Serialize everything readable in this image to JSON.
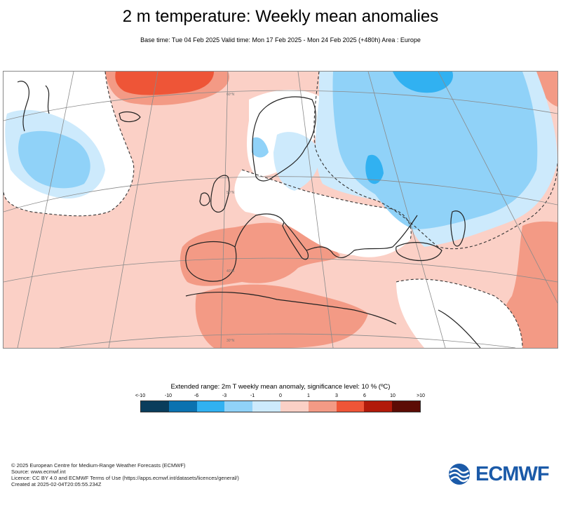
{
  "header": {
    "title": "2 m temperature: Weekly mean anomalies",
    "subtitle": "Base time: Tue 04 Feb 2025 Valid time: Mon 17 Feb 2025 - Mon 24 Feb 2025 (+480h) Area : Europe"
  },
  "map": {
    "graticule_labels": [
      "60°N",
      "50°N",
      "40°N",
      "30°N"
    ]
  },
  "legend": {
    "title": "Extended range: 2m T weekly mean anomaly, significance level: 10 % (ºC)",
    "ticks": [
      "<-10",
      "-10",
      "-6",
      "-3",
      "-1",
      "0",
      "1",
      "3",
      "6",
      "10",
      ">10"
    ],
    "colors": [
      "#0a3d5c",
      "#0b72b0",
      "#31b1f1",
      "#90d2f8",
      "#cdeafc",
      "#fbd0c6",
      "#f39a85",
      "#ee5537",
      "#b11a0a",
      "#5c0c05"
    ]
  },
  "footer": {
    "line1": "© 2025 European Centre for Medium-Range Weather Forecasts (ECMWF)",
    "line2": "Source: www.ecmwf.int",
    "line3": "Licence: CC BY 4.0 and ECMWF Terms of Use (https://apps.ecmwf.int/datasets/licences/general/)",
    "line4": "Created at 2025-02-04T20:05:55.234Z"
  },
  "logo": {
    "text": "ECMWF",
    "color": "#1b5aa8"
  }
}
